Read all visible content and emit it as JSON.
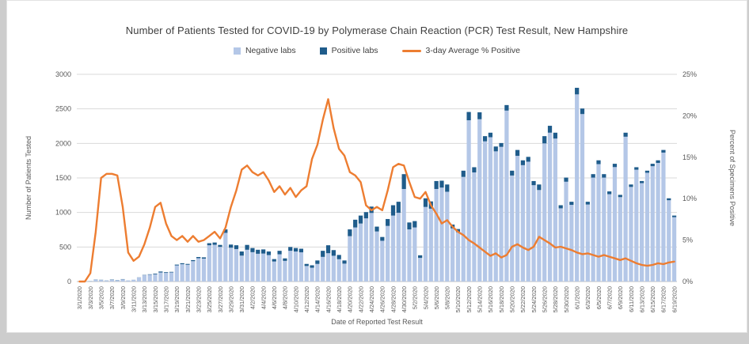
{
  "chart_data": {
    "type": "bar",
    "stacked": true,
    "title": "Number of Patients Tested for COVID-19 by Polymerase Chain Reaction (PCR) Test Result, New Hampshire",
    "xlabel": "Date of Reported Test Result",
    "ylabel_left": "Number of Patients Tested",
    "ylabel_right": "Percent of Specimens Positive",
    "ylim_left": [
      0,
      3000
    ],
    "ytick_step_left": 500,
    "ylim_right": [
      0,
      25
    ],
    "ytick_step_right": 5,
    "x_label_every": 2,
    "grid": true,
    "legend_position": "top",
    "colors": {
      "title": "#404040",
      "axis_text": "#595959",
      "grid": "#d9d9d9",
      "axis_line": "#bfbfbf"
    },
    "categories": [
      "3/1/2020",
      "3/2/2020",
      "3/3/2020",
      "3/4/2020",
      "3/5/2020",
      "3/6/2020",
      "3/7/2020",
      "3/8/2020",
      "3/9/2020",
      "3/10/2020",
      "3/11/2020",
      "3/12/2020",
      "3/13/2020",
      "3/14/2020",
      "3/15/2020",
      "3/16/2020",
      "3/17/2020",
      "3/18/2020",
      "3/19/2020",
      "3/20/2020",
      "3/21/2020",
      "3/22/2020",
      "3/23/2020",
      "3/24/2020",
      "3/25/2020",
      "3/26/2020",
      "3/27/2020",
      "3/28/2020",
      "3/29/2020",
      "3/30/2020",
      "3/31/2020",
      "4/1/2020",
      "4/2/2020",
      "4/3/2020",
      "4/4/2020",
      "4/5/2020",
      "4/6/2020",
      "4/7/2020",
      "4/8/2020",
      "4/9/2020",
      "4/10/2020",
      "4/11/2020",
      "4/12/2020",
      "4/13/2020",
      "4/14/2020",
      "4/15/2020",
      "4/16/2020",
      "4/17/2020",
      "4/18/2020",
      "4/19/2020",
      "4/20/2020",
      "4/21/2020",
      "4/22/2020",
      "4/23/2020",
      "4/24/2020",
      "4/25/2020",
      "4/26/2020",
      "4/27/2020",
      "4/28/2020",
      "4/29/2020",
      "4/30/2020",
      "5/1/2020",
      "5/2/2020",
      "5/3/2020",
      "5/4/2020",
      "5/5/2020",
      "5/6/2020",
      "5/7/2020",
      "5/8/2020",
      "5/9/2020",
      "5/10/2020",
      "5/11/2020",
      "5/12/2020",
      "5/13/2020",
      "5/14/2020",
      "5/15/2020",
      "5/16/2020",
      "5/17/2020",
      "5/18/2020",
      "5/19/2020",
      "5/20/2020",
      "5/21/2020",
      "5/22/2020",
      "5/23/2020",
      "5/24/2020",
      "5/25/2020",
      "5/26/2020",
      "5/27/2020",
      "5/28/2020",
      "5/29/2020",
      "5/30/2020",
      "5/31/2020",
      "6/1/2020",
      "6/2/2020",
      "6/3/2020",
      "6/4/2020",
      "6/5/2020",
      "6/6/2020",
      "6/7/2020",
      "6/8/2020",
      "6/9/2020",
      "6/10/2020",
      "6/11/2020",
      "6/12/2020",
      "6/13/2020",
      "6/14/2020",
      "6/15/2020",
      "6/16/2020",
      "6/17/2020",
      "6/18/2020",
      "6/19/2020"
    ],
    "series": [
      {
        "name": "Negative labs",
        "type": "bar",
        "axis": "left",
        "color": "#b4c7e7",
        "values": [
          2,
          3,
          7,
          28,
          22,
          13,
          26,
          17,
          31,
          14,
          24,
          58,
          91,
          99,
          105,
          131,
          125,
          132,
          233,
          251,
          243,
          295,
          338,
          332,
          525,
          532,
          502,
          705,
          490,
          470,
          375,
          460,
          425,
          402,
          405,
          383,
          290,
          395,
          299,
          445,
          435,
          423,
          225,
          200,
          255,
          357,
          410,
          373,
          323,
          259,
          657,
          783,
          840,
          915,
          993,
          725,
          590,
          805,
          955,
          995,
          1340,
          755,
          783,
          342,
          1080,
          1055,
          1340,
          1360,
          1300,
          770,
          715,
          1515,
          2335,
          1580,
          2350,
          2030,
          2090,
          1885,
          1950,
          2475,
          1535,
          1820,
          1685,
          1735,
          1395,
          1325,
          2000,
          2155,
          2070,
          1060,
          1445,
          1110,
          2710,
          2425,
          1115,
          1505,
          1700,
          1505,
          1265,
          1657,
          1222,
          2097,
          1370,
          1619,
          1425,
          1575,
          1670,
          1717,
          1867,
          1177,
          932
        ]
      },
      {
        "name": "Positive labs",
        "type": "bar",
        "axis": "left",
        "color": "#1f5c8b",
        "values": [
          0,
          0,
          1,
          2,
          3,
          2,
          4,
          3,
          4,
          1,
          1,
          2,
          4,
          6,
          10,
          14,
          10,
          8,
          12,
          14,
          12,
          15,
          17,
          18,
          30,
          33,
          28,
          50,
          45,
          55,
          60,
          70,
          60,
          58,
          60,
          52,
          35,
          50,
          36,
          55,
          50,
          52,
          30,
          35,
          50,
          88,
          115,
          82,
          62,
          46,
          98,
          112,
          115,
          90,
          92,
          70,
          55,
          100,
          150,
          160,
          215,
          100,
          92,
          38,
          125,
          105,
          115,
          100,
          105,
          55,
          45,
          90,
          120,
          75,
          100,
          75,
          65,
          70,
          55,
          80,
          70,
          85,
          70,
          70,
          60,
          80,
          105,
          100,
          85,
          45,
          60,
          45,
          95,
          80,
          40,
          50,
          55,
          50,
          40,
          48,
          33,
          58,
          35,
          36,
          30,
          30,
          35,
          38,
          38,
          28,
          23
        ]
      },
      {
        "name": "3-day Average % Positive",
        "type": "line",
        "axis": "right",
        "color": "#ed7d31",
        "values": [
          0,
          0,
          1,
          6,
          12.5,
          13,
          13,
          12.8,
          9,
          3.5,
          2.5,
          3,
          4.5,
          6.5,
          9,
          9.5,
          7,
          5.5,
          5,
          5.5,
          4.8,
          5.5,
          4.8,
          5,
          5.5,
          6,
          5.2,
          6.5,
          9,
          11,
          13.5,
          14,
          13.2,
          12.8,
          13.2,
          12.2,
          10.8,
          11.5,
          10.5,
          11.3,
          10.2,
          11,
          11.5,
          14.8,
          16.5,
          19.5,
          22,
          18.5,
          16,
          15.2,
          13.2,
          12.8,
          12,
          9.2,
          8.6,
          9,
          8.6,
          11,
          13.8,
          14.2,
          14,
          12,
          10.2,
          10,
          10.8,
          9.2,
          8.2,
          7,
          7.4,
          6.6,
          6,
          5.6,
          5,
          4.6,
          4.1,
          3.6,
          3.1,
          3.4,
          2.9,
          3.2,
          4.2,
          4.5,
          4.1,
          3.8,
          4.2,
          5.4,
          5,
          4.6,
          4.1,
          4.2,
          4,
          3.8,
          3.5,
          3.3,
          3.4,
          3.2,
          3,
          3.2,
          3,
          2.8,
          2.6,
          2.8,
          2.5,
          2.2,
          2,
          1.9,
          2,
          2.2,
          2.1,
          2.3,
          2.4
        ]
      }
    ]
  }
}
